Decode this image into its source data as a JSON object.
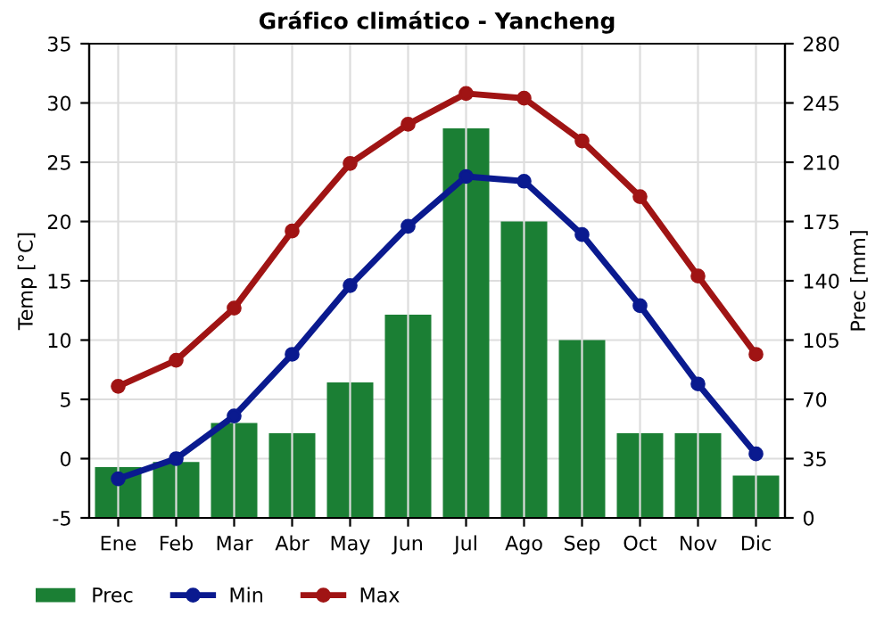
{
  "chart_data": {
    "type": "line",
    "title": "Gráfico climático - Yancheng",
    "ylabel": "Temp [°C]",
    "y2label": "Prec [mm]",
    "categories": [
      "Ene",
      "Feb",
      "Mar",
      "Abr",
      "May",
      "Jun",
      "Jul",
      "Ago",
      "Sep",
      "Oct",
      "Nov",
      "Dic"
    ],
    "series": [
      {
        "name": "Prec",
        "type": "bar",
        "axis": "y2",
        "color": "#1b7f34",
        "values": [
          30,
          33,
          56,
          50,
          80,
          120,
          230,
          175,
          105,
          50,
          50,
          25
        ]
      },
      {
        "name": "Min",
        "color": "#0a1a8f",
        "values": [
          -1.7,
          0,
          3.6,
          8.8,
          14.6,
          19.6,
          23.8,
          23.4,
          18.9,
          12.9,
          6.3,
          0.4
        ]
      },
      {
        "name": "Max",
        "color": "#a01414",
        "values": [
          6.1,
          8.3,
          12.7,
          19.2,
          24.9,
          28.2,
          30.8,
          30.4,
          26.8,
          22.1,
          15.4,
          8.8
        ]
      }
    ],
    "ylim": [
      -5,
      35
    ],
    "yticks": [
      -5,
      0,
      5,
      10,
      15,
      20,
      25,
      30,
      35
    ],
    "y2lim": [
      0,
      280
    ],
    "y2ticks": [
      0,
      35,
      70,
      105,
      140,
      175,
      210,
      245,
      280
    ],
    "grid": true,
    "legend": "bottom",
    "marker": "circle",
    "line_style": "solid"
  }
}
